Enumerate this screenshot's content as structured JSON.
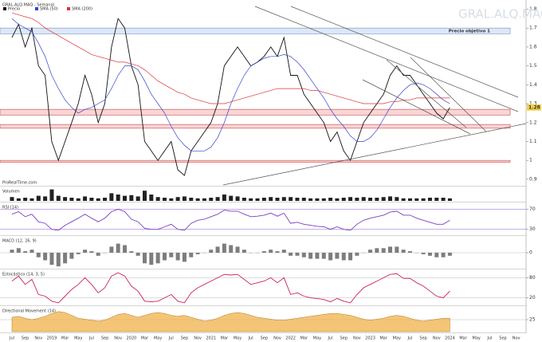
{
  "watermark": "GRAL.ALQ.MAQ",
  "brand": "ProRealTime.com",
  "chart_data": [
    {
      "type": "line",
      "title": "GRAL.ALQ.MAQ - Semanal",
      "categories": [
        "Jul",
        null,
        "Sep",
        null,
        "Nov",
        null,
        "2019",
        null,
        "Mar",
        null,
        "May",
        null,
        "Jul",
        null,
        "Sep",
        null,
        "Nov",
        null,
        "2020",
        null,
        "Mar",
        null,
        "May",
        null,
        "Jul",
        null,
        "Sep",
        null,
        "Nov",
        null,
        "2021",
        null,
        "Mar",
        null,
        "May",
        null,
        "Jul",
        null,
        "Sep",
        null,
        "Nov",
        null,
        "2022",
        null,
        "Mar",
        null,
        "May",
        null,
        "Jul",
        null,
        "Sep",
        null,
        "Nov",
        null,
        "2023",
        null,
        "Mar",
        null,
        "May",
        null,
        "Jul",
        null,
        "Sep",
        null,
        "Nov",
        null,
        "2024",
        null,
        "Mar",
        null,
        "May",
        null,
        "Jul",
        null,
        "Sep",
        null,
        "Nov",
        null
      ],
      "series": [
        {
          "name": "Precio",
          "color": "#111111",
          "values": [
            1.65,
            1.72,
            1.6,
            1.7,
            1.5,
            1.45,
            1.1,
            1.0,
            1.1,
            1.2,
            1.3,
            1.45,
            1.35,
            1.2,
            1.3,
            1.6,
            1.75,
            1.7,
            1.5,
            1.4,
            1.1,
            1.05,
            1.0,
            1.05,
            1.1,
            0.95,
            0.92,
            1.05,
            1.1,
            1.15,
            1.2,
            1.3,
            1.5,
            1.55,
            1.6,
            1.55,
            1.5,
            1.52,
            1.55,
            1.6,
            1.55,
            1.65,
            1.45,
            1.45,
            1.35,
            1.3,
            1.25,
            1.2,
            1.1,
            1.15,
            1.05,
            1.0,
            1.1,
            1.2,
            1.25,
            1.3,
            1.35,
            1.45,
            1.5,
            1.45,
            1.45,
            1.4,
            1.35,
            1.3,
            1.25,
            1.22,
            1.28,
            null,
            null,
            null,
            null,
            null,
            null,
            null,
            null,
            null,
            null,
            null
          ]
        },
        {
          "name": "SMA (50)",
          "color": "#3344cc",
          "values": [
            1.75,
            1.72,
            1.7,
            1.68,
            1.62,
            1.55,
            1.45,
            1.38,
            1.32,
            1.28,
            1.25,
            1.27,
            1.28,
            1.3,
            1.32,
            1.38,
            1.45,
            1.5,
            1.5,
            1.48,
            1.42,
            1.35,
            1.3,
            1.25,
            1.18,
            1.12,
            1.08,
            1.05,
            1.05,
            1.05,
            1.07,
            1.12,
            1.2,
            1.3,
            1.38,
            1.45,
            1.5,
            1.52,
            1.54,
            1.55,
            1.55,
            1.56,
            1.55,
            1.52,
            1.48,
            1.43,
            1.38,
            1.33,
            1.27,
            1.22,
            1.18,
            1.13,
            1.1,
            1.1,
            1.12,
            1.16,
            1.22,
            1.28,
            1.33,
            1.37,
            1.4,
            1.41,
            1.4,
            1.38,
            1.35,
            1.32,
            1.3,
            null,
            null,
            null,
            null,
            null,
            null,
            null,
            null,
            null,
            null,
            null
          ]
        },
        {
          "name": "SMA (200)",
          "color": "#dd3333",
          "values": [
            1.78,
            1.77,
            1.76,
            1.75,
            1.73,
            1.7,
            1.68,
            1.66,
            1.64,
            1.62,
            1.6,
            1.58,
            1.56,
            1.55,
            1.54,
            1.53,
            1.52,
            1.52,
            1.51,
            1.5,
            1.48,
            1.45,
            1.42,
            1.4,
            1.38,
            1.36,
            1.35,
            1.33,
            1.32,
            1.31,
            1.3,
            1.3,
            1.3,
            1.31,
            1.32,
            1.33,
            1.34,
            1.35,
            1.36,
            1.37,
            1.38,
            1.38,
            1.38,
            1.38,
            1.38,
            1.37,
            1.37,
            1.36,
            1.35,
            1.34,
            1.33,
            1.32,
            1.31,
            1.3,
            1.3,
            1.3,
            1.3,
            1.31,
            1.31,
            1.32,
            1.32,
            1.33,
            1.33,
            1.33,
            1.33,
            1.33,
            1.33,
            null,
            null,
            null,
            null,
            null,
            null,
            null,
            null,
            null,
            null,
            null
          ]
        }
      ],
      "zones": [
        {
          "label": "Precio objetivo 1",
          "from": 1.67,
          "to": 1.7,
          "color": "#dde8f7",
          "border": "#6f8fc0"
        },
        {
          "from": 1.24,
          "to": 1.27,
          "color": "#f8d6d6",
          "border": "#d04040"
        },
        {
          "from": 1.17,
          "to": 1.19,
          "color": "#f8d6d6",
          "border": "#d04040"
        },
        {
          "from": 0.99,
          "to": 1.0,
          "color": "#f8d6d6",
          "border": "#d04040"
        }
      ],
      "last": 1.28,
      "ylim": [
        0.87,
        1.84
      ],
      "yticks": [
        0.9,
        1,
        1.1,
        1.2,
        1.3,
        1.4,
        1.5,
        1.6,
        1.7,
        1.8
      ],
      "grid": false
    },
    {
      "type": "bar",
      "title": "Volumen",
      "color": "#222222",
      "ylim": [
        0,
        100
      ],
      "yticks": [],
      "values": [
        30,
        20,
        25,
        20,
        40,
        35,
        90,
        40,
        30,
        25,
        20,
        35,
        25,
        20,
        25,
        60,
        50,
        40,
        45,
        35,
        80,
        50,
        30,
        25,
        20,
        30,
        35,
        25,
        20,
        20,
        25,
        30,
        50,
        40,
        35,
        25,
        20,
        20,
        25,
        30,
        25,
        30,
        30,
        25,
        25,
        20,
        20,
        20,
        25,
        20,
        25,
        30,
        25,
        30,
        25,
        25,
        30,
        35,
        30,
        20,
        20,
        20,
        20,
        25,
        25,
        25,
        20,
        null,
        null,
        null,
        null,
        null,
        null,
        null,
        null,
        null,
        null,
        null
      ]
    },
    {
      "type": "line",
      "title": "RSI (14)",
      "color": "#7a3fc0",
      "ylim": [
        20,
        80
      ],
      "yticks": [
        30,
        70
      ],
      "grid": true,
      "values": [
        60,
        65,
        55,
        60,
        45,
        42,
        30,
        28,
        38,
        45,
        52,
        60,
        52,
        45,
        52,
        65,
        70,
        65,
        50,
        45,
        32,
        30,
        30,
        35,
        40,
        30,
        28,
        42,
        48,
        50,
        55,
        60,
        68,
        66,
        66,
        60,
        55,
        56,
        58,
        62,
        56,
        62,
        42,
        44,
        40,
        38,
        36,
        35,
        30,
        35,
        30,
        28,
        40,
        48,
        52,
        55,
        58,
        64,
        66,
        58,
        58,
        52,
        48,
        44,
        40,
        40,
        48,
        null,
        null,
        null,
        null,
        null,
        null,
        null,
        null,
        null,
        null,
        null
      ]
    },
    {
      "type": "bar",
      "title": "MACD (12, 26, 9)",
      "color": "#7d7d7d",
      "ylim": [
        -0.1,
        0.1
      ],
      "yticks": [
        0
      ],
      "grid": true,
      "values": [
        0.02,
        0.03,
        0.01,
        0.02,
        -0.03,
        -0.05,
        -0.08,
        -0.09,
        -0.07,
        -0.04,
        -0.01,
        0.02,
        0.01,
        -0.02,
        0.0,
        0.04,
        0.06,
        0.05,
        0.01,
        -0.02,
        -0.07,
        -0.08,
        -0.07,
        -0.05,
        -0.03,
        -0.05,
        -0.06,
        -0.03,
        -0.01,
        0.0,
        0.02,
        0.04,
        0.06,
        0.05,
        0.04,
        0.02,
        0.0,
        0.0,
        0.01,
        0.02,
        0.01,
        0.02,
        -0.02,
        -0.02,
        -0.03,
        -0.04,
        -0.04,
        -0.04,
        -0.05,
        -0.04,
        -0.05,
        -0.05,
        -0.02,
        0.0,
        0.02,
        0.03,
        0.03,
        0.04,
        0.04,
        0.02,
        0.01,
        0.0,
        -0.01,
        -0.02,
        -0.03,
        -0.03,
        -0.02,
        null,
        null,
        null,
        null,
        null,
        null,
        null,
        null,
        null,
        null,
        null
      ]
    },
    {
      "type": "line",
      "title": "Estocástico (14, 3, 5)",
      "color": "#cc2255",
      "ylim": [
        0,
        100
      ],
      "yticks": [
        20,
        80
      ],
      "grid": true,
      "values": [
        70,
        85,
        60,
        75,
        30,
        25,
        10,
        5,
        25,
        45,
        60,
        80,
        60,
        35,
        50,
        85,
        95,
        85,
        55,
        40,
        10,
        8,
        10,
        20,
        30,
        10,
        5,
        35,
        50,
        60,
        70,
        80,
        90,
        88,
        90,
        75,
        60,
        65,
        70,
        80,
        65,
        80,
        30,
        35,
        25,
        20,
        18,
        15,
        8,
        18,
        10,
        5,
        30,
        50,
        60,
        70,
        80,
        90,
        92,
        78,
        78,
        65,
        55,
        40,
        25,
        20,
        40,
        null,
        null,
        null,
        null,
        null,
        null,
        null,
        null,
        null,
        null,
        null
      ]
    },
    {
      "type": "area",
      "title": "Directional Movement (14)",
      "color": "#f0b24a",
      "ylim": [
        0,
        50
      ],
      "yticks": [
        25
      ],
      "grid": true,
      "values": [
        30,
        32,
        28,
        25,
        28,
        32,
        38,
        42,
        40,
        34,
        28,
        26,
        24,
        22,
        24,
        30,
        36,
        38,
        34,
        30,
        34,
        38,
        40,
        38,
        34,
        32,
        34,
        30,
        26,
        22,
        24,
        28,
        34,
        38,
        40,
        38,
        34,
        30,
        28,
        26,
        24,
        24,
        26,
        28,
        30,
        32,
        34,
        36,
        38,
        38,
        36,
        34,
        30,
        26,
        24,
        26,
        28,
        32,
        34,
        32,
        28,
        24,
        22,
        24,
        26,
        28,
        28,
        null,
        null,
        null,
        null,
        null,
        null,
        null,
        null,
        null,
        null,
        null
      ]
    }
  ]
}
